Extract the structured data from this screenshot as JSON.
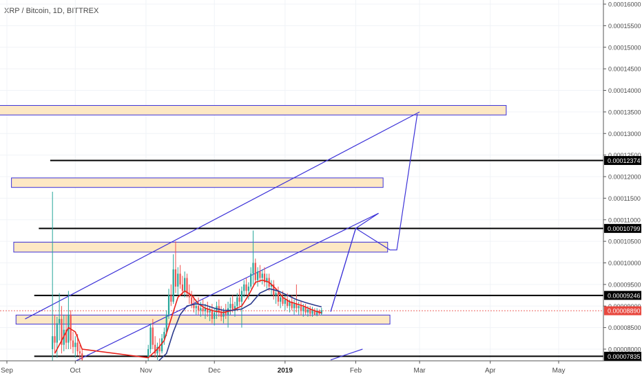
{
  "header": {
    "symbol": "XRP / Bitcoin, 1D, BITTREX"
  },
  "chart_data": {
    "type": "candlestick",
    "title": "XRP / Bitcoin, 1D, BITTREX",
    "ylim": [
      7.72e-05,
      0.000162
    ],
    "y_ticks": [
      "0.00016000",
      "0.00015500",
      "0.00015000",
      "0.00014500",
      "0.00014000",
      "0.00013500",
      "0.00013000",
      "0.00012500",
      "0.00012000",
      "0.00011500",
      "0.00011000",
      "0.00010500",
      "0.00010000",
      "0.00009500",
      "0.00009000",
      "0.00008500",
      "0.00008000"
    ],
    "y_tick_values": [
      0.00016,
      0.000155,
      0.00015,
      0.000145,
      0.00014,
      0.000135,
      0.00013,
      0.000125,
      0.00012,
      0.000115,
      0.00011,
      0.000105,
      0.0001,
      9.5e-05,
      9e-05,
      8.5e-05,
      8e-05
    ],
    "x_ticks": [
      {
        "label": "Sep",
        "day": 0
      },
      {
        "label": "Oct",
        "day": 30
      },
      {
        "label": "Nov",
        "day": 61
      },
      {
        "label": "Dec",
        "day": 91
      },
      {
        "label": "2019",
        "day": 122
      },
      {
        "label": "Feb",
        "day": 153
      },
      {
        "label": "Mar",
        "day": 181
      },
      {
        "label": "Apr",
        "day": 212
      },
      {
        "label": "May",
        "day": 242
      }
    ],
    "horizontal_levels": [
      {
        "price": 0.00012374,
        "label": "0.00012374",
        "start_day": 19
      },
      {
        "price": 0.00010799,
        "label": "0.00010799",
        "start_day": 14
      },
      {
        "price": 9.246e-05,
        "label": "0.00009246",
        "start_day": 12
      },
      {
        "price": 7.835e-05,
        "label": "0.00007835",
        "start_day": 12
      }
    ],
    "current_price": {
      "price": 8.89e-05,
      "label": "0.00008890"
    },
    "zones": [
      {
        "day_from": -7,
        "day_to": 219,
        "price_hi": 0.0001365,
        "price_lo": 0.0001343
      },
      {
        "day_from": 2,
        "day_to": 165,
        "price_hi": 0.0001197,
        "price_lo": 0.0001175
      },
      {
        "day_from": 3,
        "day_to": 167,
        "price_hi": 0.0001048,
        "price_lo": 0.0001025
      },
      {
        "day_from": 4,
        "day_to": 168,
        "price_hi": 8.79e-05,
        "price_lo": 8.58e-05
      }
    ],
    "trendlines": [
      {
        "points": [
          [
            8,
            8.7e-05
          ],
          [
            181,
            0.000135
          ]
        ]
      },
      {
        "points": [
          [
            30,
            7.72e-05
          ],
          [
            163,
            0.0001115
          ]
        ]
      },
      {
        "points": [
          [
            142,
            8.87e-05
          ],
          [
            153,
            0.000108
          ],
          [
            168,
            0.000103
          ],
          [
            171,
            0.000103
          ],
          [
            180,
            0.0001345
          ]
        ]
      },
      {
        "points": [
          [
            142,
            8.87e-05
          ],
          [
            153,
            0.000108
          ],
          [
            163,
            0.0001115
          ]
        ]
      },
      {
        "points": [
          [
            142,
            7.75e-05
          ],
          [
            156,
            8e-05
          ]
        ]
      }
    ],
    "candles": [
      {
        "day": 20,
        "o": 8e-05,
        "h": 0.0001165,
        "l": 7.72e-05,
        "c": 8.3e-05
      },
      {
        "day": 21,
        "o": 8.3e-05,
        "h": 8.8e-05,
        "l": 7.9e-05,
        "c": 8.15e-05
      },
      {
        "day": 22,
        "o": 8.15e-05,
        "h": 8.75e-05,
        "l": 7.8e-05,
        "c": 8.6e-05
      },
      {
        "day": 23,
        "o": 8.6e-05,
        "h": 9.3e-05,
        "l": 8.2e-05,
        "c": 8.7e-05
      },
      {
        "day": 24,
        "o": 8.7e-05,
        "h": 9e-05,
        "l": 7.9e-05,
        "c": 8.1e-05
      },
      {
        "day": 25,
        "o": 8.1e-05,
        "h": 8.8e-05,
        "l": 7.95e-05,
        "c": 8.45e-05
      },
      {
        "day": 26,
        "o": 8.45e-05,
        "h": 8.8e-05,
        "l": 8e-05,
        "c": 8.15e-05
      },
      {
        "day": 27,
        "o": 8.15e-05,
        "h": 9.35e-05,
        "l": 8e-05,
        "c": 8.8e-05
      },
      {
        "day": 28,
        "o": 8.8e-05,
        "h": 8.9e-05,
        "l": 8e-05,
        "c": 8.2e-05
      },
      {
        "day": 29,
        "o": 8.2e-05,
        "h": 8.4e-05,
        "l": 7.9e-05,
        "c": 8.05e-05
      },
      {
        "day": 30,
        "o": 8.05e-05,
        "h": 8.3e-05,
        "l": 7.8e-05,
        "c": 8.15e-05
      },
      {
        "day": 31,
        "o": 8.15e-05,
        "h": 8.35e-05,
        "l": 7.85e-05,
        "c": 7.95e-05
      },
      {
        "day": 32,
        "o": 7.95e-05,
        "h": 8.1e-05,
        "l": 7.75e-05,
        "c": 7.9e-05
      },
      {
        "day": 33,
        "o": 7.9e-05,
        "h": 8e-05,
        "l": 7.72e-05,
        "c": 7.76e-05
      },
      {
        "day": 62,
        "o": 7.8e-05,
        "h": 8.1e-05,
        "l": 7.72e-05,
        "c": 8e-05
      },
      {
        "day": 63,
        "o": 8e-05,
        "h": 8.6e-05,
        "l": 7.9e-05,
        "c": 8.5e-05
      },
      {
        "day": 64,
        "o": 8.5e-05,
        "h": 8.7e-05,
        "l": 8e-05,
        "c": 8.1e-05
      },
      {
        "day": 65,
        "o": 8.1e-05,
        "h": 8.3e-05,
        "l": 7.8e-05,
        "c": 7.9e-05
      },
      {
        "day": 66,
        "o": 7.9e-05,
        "h": 8.15e-05,
        "l": 7.75e-05,
        "c": 8.05e-05
      },
      {
        "day": 67,
        "o": 8.05e-05,
        "h": 8.25e-05,
        "l": 7.85e-05,
        "c": 7.95e-05
      },
      {
        "day": 68,
        "o": 7.95e-05,
        "h": 8.35e-05,
        "l": 7.9e-05,
        "c": 8.25e-05
      },
      {
        "day": 69,
        "o": 8.25e-05,
        "h": 8.5e-05,
        "l": 8.1e-05,
        "c": 8.4e-05
      },
      {
        "day": 70,
        "o": 8.4e-05,
        "h": 8.9e-05,
        "l": 8.3e-05,
        "c": 8.8e-05
      },
      {
        "day": 71,
        "o": 8.8e-05,
        "h": 9.4e-05,
        "l": 8.7e-05,
        "c": 9.25e-05
      },
      {
        "day": 72,
        "o": 9.25e-05,
        "h": 9.5e-05,
        "l": 9e-05,
        "c": 9.1e-05
      },
      {
        "day": 73,
        "o": 9.1e-05,
        "h": 0.000102,
        "l": 9.05e-05,
        "c": 9.85e-05
      },
      {
        "day": 74,
        "o": 9.85e-05,
        "h": 0.000105,
        "l": 9.3e-05,
        "c": 9.45e-05
      },
      {
        "day": 75,
        "o": 9.45e-05,
        "h": 9.9e-05,
        "l": 9.25e-05,
        "c": 9.75e-05
      },
      {
        "day": 76,
        "o": 9.75e-05,
        "h": 9.95e-05,
        "l": 9.4e-05,
        "c": 9.5e-05
      },
      {
        "day": 77,
        "o": 9.5e-05,
        "h": 9.7e-05,
        "l": 9.25e-05,
        "c": 9.35e-05
      },
      {
        "day": 78,
        "o": 9.35e-05,
        "h": 9.8e-05,
        "l": 9.2e-05,
        "c": 9.65e-05
      },
      {
        "day": 79,
        "o": 9.65e-05,
        "h": 9.75e-05,
        "l": 9.2e-05,
        "c": 9.3e-05
      },
      {
        "day": 80,
        "o": 9.3e-05,
        "h": 9.5e-05,
        "l": 9.05e-05,
        "c": 9.2e-05
      },
      {
        "day": 81,
        "o": 9.2e-05,
        "h": 9.35e-05,
        "l": 8.95e-05,
        "c": 9.05e-05
      },
      {
        "day": 82,
        "o": 9.05e-05,
        "h": 9.25e-05,
        "l": 8.85e-05,
        "c": 8.95e-05
      },
      {
        "day": 83,
        "o": 8.95e-05,
        "h": 9.15e-05,
        "l": 8.8e-05,
        "c": 9e-05
      },
      {
        "day": 84,
        "o": 9e-05,
        "h": 9.2e-05,
        "l": 8.8e-05,
        "c": 8.9e-05
      },
      {
        "day": 85,
        "o": 8.9e-05,
        "h": 9.1e-05,
        "l": 8.75e-05,
        "c": 8.95e-05
      },
      {
        "day": 86,
        "o": 8.95e-05,
        "h": 9.15e-05,
        "l": 8.8e-05,
        "c": 8.88e-05
      },
      {
        "day": 87,
        "o": 8.88e-05,
        "h": 9.05e-05,
        "l": 8.7e-05,
        "c": 8.95e-05
      },
      {
        "day": 88,
        "o": 8.95e-05,
        "h": 9.1e-05,
        "l": 8.75e-05,
        "c": 8.85e-05
      },
      {
        "day": 89,
        "o": 8.85e-05,
        "h": 9e-05,
        "l": 8.65e-05,
        "c": 8.9e-05
      },
      {
        "day": 90,
        "o": 8.9e-05,
        "h": 9.05e-05,
        "l": 8.6e-05,
        "c": 8.7e-05
      },
      {
        "day": 91,
        "o": 8.7e-05,
        "h": 8.95e-05,
        "l": 8.55e-05,
        "c": 8.85e-05
      },
      {
        "day": 92,
        "o": 8.85e-05,
        "h": 9.1e-05,
        "l": 8.7e-05,
        "c": 9e-05
      },
      {
        "day": 93,
        "o": 9e-05,
        "h": 9.15e-05,
        "l": 8.75e-05,
        "c": 8.85e-05
      },
      {
        "day": 94,
        "o": 8.85e-05,
        "h": 9e-05,
        "l": 8.65e-05,
        "c": 8.75e-05
      },
      {
        "day": 95,
        "o": 8.75e-05,
        "h": 8.95e-05,
        "l": 8.6e-05,
        "c": 8.88e-05
      },
      {
        "day": 96,
        "o": 8.88e-05,
        "h": 9.05e-05,
        "l": 8.7e-05,
        "c": 8.8e-05
      },
      {
        "day": 97,
        "o": 8.8e-05,
        "h": 9.1e-05,
        "l": 8.5e-05,
        "c": 8.95e-05
      },
      {
        "day": 98,
        "o": 8.95e-05,
        "h": 9.2e-05,
        "l": 8.8e-05,
        "c": 9.05e-05
      },
      {
        "day": 99,
        "o": 9.05e-05,
        "h": 9.25e-05,
        "l": 8.85e-05,
        "c": 8.9e-05
      },
      {
        "day": 100,
        "o": 8.9e-05,
        "h": 9.1e-05,
        "l": 8.75e-05,
        "c": 9e-05
      },
      {
        "day": 101,
        "o": 9e-05,
        "h": 9.3e-05,
        "l": 8.9e-05,
        "c": 9.2e-05
      },
      {
        "day": 102,
        "o": 9.2e-05,
        "h": 9.4e-05,
        "l": 9e-05,
        "c": 9.1e-05
      },
      {
        "day": 103,
        "o": 9.1e-05,
        "h": 9.45e-05,
        "l": 8.5e-05,
        "c": 9.35e-05
      },
      {
        "day": 104,
        "o": 9.35e-05,
        "h": 9.6e-05,
        "l": 9.2e-05,
        "c": 9.5e-05
      },
      {
        "day": 105,
        "o": 9.5e-05,
        "h": 9.65e-05,
        "l": 9.25e-05,
        "c": 9.35e-05
      },
      {
        "day": 106,
        "o": 9.35e-05,
        "h": 9.55e-05,
        "l": 9.15e-05,
        "c": 9.45e-05
      },
      {
        "day": 107,
        "o": 9.45e-05,
        "h": 9.9e-05,
        "l": 9.4e-05,
        "c": 9.75e-05
      },
      {
        "day": 108,
        "o": 9.75e-05,
        "h": 0.0001075,
        "l": 9.5e-05,
        "c": 0.0001
      },
      {
        "day": 109,
        "o": 0.0001,
        "h": 0.000101,
        "l": 9.5e-05,
        "c": 9.6e-05
      },
      {
        "day": 110,
        "o": 9.6e-05,
        "h": 9.9e-05,
        "l": 9.45e-05,
        "c": 9.8e-05
      },
      {
        "day": 111,
        "o": 9.8e-05,
        "h": 9.95e-05,
        "l": 9.55e-05,
        "c": 9.65e-05
      },
      {
        "day": 112,
        "o": 9.65e-05,
        "h": 9.85e-05,
        "l": 9.5e-05,
        "c": 9.75e-05
      },
      {
        "day": 113,
        "o": 9.75e-05,
        "h": 9.9e-05,
        "l": 9.45e-05,
        "c": 9.55e-05
      },
      {
        "day": 114,
        "o": 9.55e-05,
        "h": 9.75e-05,
        "l": 9.4e-05,
        "c": 9.65e-05
      },
      {
        "day": 115,
        "o": 9.65e-05,
        "h": 9.75e-05,
        "l": 9.35e-05,
        "c": 9.45e-05
      },
      {
        "day": 116,
        "o": 9.45e-05,
        "h": 9.6e-05,
        "l": 9.25e-05,
        "c": 9.5e-05
      },
      {
        "day": 117,
        "o": 9.5e-05,
        "h": 9.6e-05,
        "l": 9.15e-05,
        "c": 9.25e-05
      },
      {
        "day": 118,
        "o": 9.25e-05,
        "h": 9.4e-05,
        "l": 9.05e-05,
        "c": 9.3e-05
      },
      {
        "day": 119,
        "o": 9.3e-05,
        "h": 9.45e-05,
        "l": 9e-05,
        "c": 9.1e-05
      },
      {
        "day": 120,
        "o": 9.1e-05,
        "h": 9.3e-05,
        "l": 8.95e-05,
        "c": 9.2e-05
      },
      {
        "day": 121,
        "o": 9.2e-05,
        "h": 9.35e-05,
        "l": 9e-05,
        "c": 9.05e-05
      },
      {
        "day": 122,
        "o": 9.05e-05,
        "h": 9.25e-05,
        "l": 8.9e-05,
        "c": 9.15e-05
      },
      {
        "day": 123,
        "o": 9.15e-05,
        "h": 9.3e-05,
        "l": 8.95e-05,
        "c": 9e-05
      },
      {
        "day": 124,
        "o": 9e-05,
        "h": 9.15e-05,
        "l": 8.85e-05,
        "c": 9.1e-05
      },
      {
        "day": 125,
        "o": 9.1e-05,
        "h": 9.25e-05,
        "l": 8.9e-05,
        "c": 8.95e-05
      },
      {
        "day": 126,
        "o": 8.95e-05,
        "h": 9.15e-05,
        "l": 8.8e-05,
        "c": 9.05e-05
      },
      {
        "day": 127,
        "o": 9.05e-05,
        "h": 9.5e-05,
        "l": 8.85e-05,
        "c": 8.95e-05
      },
      {
        "day": 128,
        "o": 8.95e-05,
        "h": 9.1e-05,
        "l": 8.8e-05,
        "c": 9e-05
      },
      {
        "day": 129,
        "o": 9e-05,
        "h": 9.1e-05,
        "l": 8.78e-05,
        "c": 8.88e-05
      },
      {
        "day": 130,
        "o": 8.88e-05,
        "h": 9.05e-05,
        "l": 8.75e-05,
        "c": 8.98e-05
      },
      {
        "day": 131,
        "o": 8.98e-05,
        "h": 9.05e-05,
        "l": 8.8e-05,
        "c": 8.85e-05
      },
      {
        "day": 132,
        "o": 8.85e-05,
        "h": 9e-05,
        "l": 8.75e-05,
        "c": 8.92e-05
      },
      {
        "day": 133,
        "o": 8.92e-05,
        "h": 9e-05,
        "l": 8.76e-05,
        "c": 8.82e-05
      },
      {
        "day": 134,
        "o": 8.82e-05,
        "h": 8.98e-05,
        "l": 8.75e-05,
        "c": 8.9e-05
      },
      {
        "day": 135,
        "o": 8.9e-05,
        "h": 8.95e-05,
        "l": 8.78e-05,
        "c": 8.8e-05
      },
      {
        "day": 136,
        "o": 8.8e-05,
        "h": 8.95e-05,
        "l": 8.76e-05,
        "c": 8.89e-05
      },
      {
        "day": 137,
        "o": 8.89e-05,
        "h": 8.92e-05,
        "l": 8.78e-05,
        "c": 8.82e-05
      },
      {
        "day": 138,
        "o": 8.82e-05,
        "h": 8.96e-05,
        "l": 8.78e-05,
        "c": 8.9e-05
      }
    ],
    "moving_averages": [
      {
        "color": "#e8221b",
        "points": [
          [
            21,
            7.9e-05
          ],
          [
            24,
            8.2e-05
          ],
          [
            27,
            8.5e-05
          ],
          [
            30,
            8.4e-05
          ],
          [
            33,
            8e-05
          ],
          [
            62,
            7.8e-05
          ],
          [
            66,
            8e-05
          ],
          [
            69,
            8.2e-05
          ],
          [
            72,
            8.7e-05
          ],
          [
            75,
            9.2e-05
          ],
          [
            78,
            9.35e-05
          ],
          [
            81,
            9.25e-05
          ],
          [
            84,
            9.05e-05
          ],
          [
            87,
            8.95e-05
          ],
          [
            91,
            8.88e-05
          ],
          [
            95,
            8.85e-05
          ],
          [
            99,
            8.9e-05
          ],
          [
            103,
            9e-05
          ],
          [
            106,
            9.25e-05
          ],
          [
            109,
            9.55e-05
          ],
          [
            112,
            9.6e-05
          ],
          [
            115,
            9.55e-05
          ],
          [
            118,
            9.4e-05
          ],
          [
            121,
            9.2e-05
          ],
          [
            124,
            9.1e-05
          ],
          [
            127,
            9.05e-05
          ],
          [
            130,
            9e-05
          ],
          [
            133,
            8.93e-05
          ],
          [
            136,
            8.87e-05
          ],
          [
            138,
            8.84e-05
          ]
        ]
      },
      {
        "color": "#2b3a8c",
        "points": [
          [
            66,
            7.7e-05
          ],
          [
            70,
            7.9e-05
          ],
          [
            73,
            8.4e-05
          ],
          [
            76,
            8.8e-05
          ],
          [
            79,
            9e-05
          ],
          [
            83,
            9.05e-05
          ],
          [
            87,
            9.02e-05
          ],
          [
            91,
            8.95e-05
          ],
          [
            95,
            8.9e-05
          ],
          [
            99,
            8.9e-05
          ],
          [
            103,
            8.93e-05
          ],
          [
            107,
            9.05e-05
          ],
          [
            111,
            9.3e-05
          ],
          [
            115,
            9.4e-05
          ],
          [
            119,
            9.35e-05
          ],
          [
            123,
            9.25e-05
          ],
          [
            127,
            9.15e-05
          ],
          [
            131,
            9.08e-05
          ],
          [
            135,
            9.02e-05
          ],
          [
            138,
            8.98e-05
          ]
        ]
      }
    ]
  }
}
